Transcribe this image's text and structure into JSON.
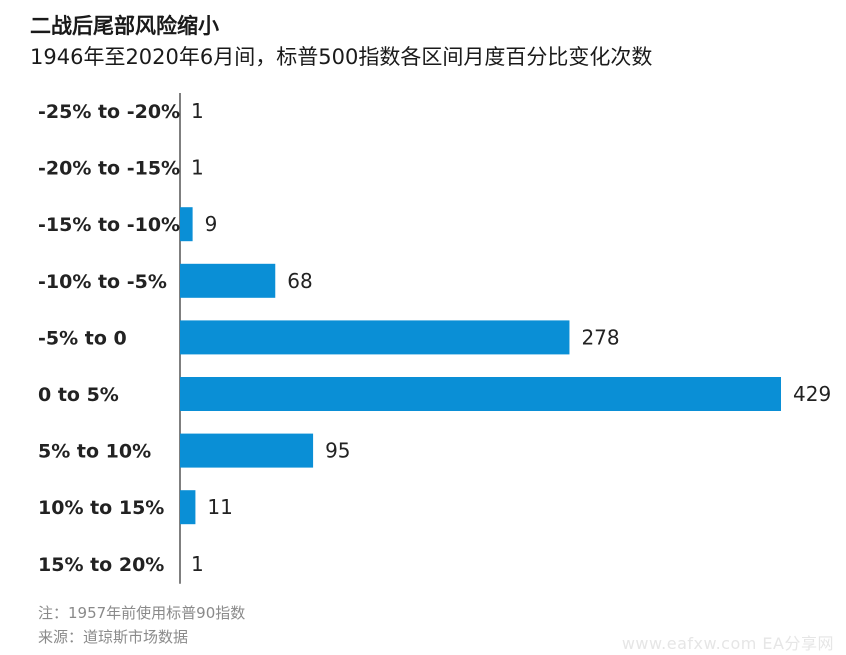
{
  "title": "二战后尾部风险缩小",
  "subtitle": "1946年至2020年6月间，标普500指数各区间月度百分比变化次数",
  "note": "注：1957年前使用标普90指数",
  "source": "来源：道琼斯市场数据",
  "watermark": "www.eafxw.com   EA分享网",
  "colors": {
    "bar": "#0a8fd6",
    "axis": "#555555",
    "label": "#222222"
  },
  "chart_data": {
    "type": "bar",
    "orientation": "horizontal",
    "categories": [
      "-25% to -20%",
      "-20% to -15%",
      "-15% to -10%",
      "-10% to -5%",
      "-5% to 0",
      "0 to 5%",
      "5% to 10%",
      "10% to 15%",
      "15% to 20%"
    ],
    "values": [
      1,
      1,
      9,
      68,
      278,
      429,
      95,
      11,
      1
    ],
    "title": "二战后尾部风险缩小",
    "subtitle": "1946年至2020年6月间，标普500指数各区间月度百分比变化次数",
    "xlim": [
      0,
      429
    ],
    "grid": false,
    "legend": "none"
  }
}
